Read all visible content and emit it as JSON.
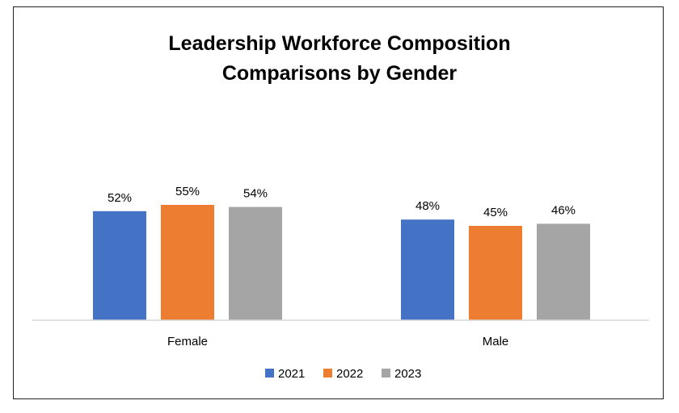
{
  "chart_data": {
    "type": "bar",
    "title_lines": [
      "Leadership Workforce Composition",
      "Comparisons by Gender"
    ],
    "categories": [
      "Female",
      "Male"
    ],
    "series": [
      {
        "name": "2021",
        "color": "#4472C4",
        "values": [
          52,
          48
        ],
        "labels": [
          "52%",
          "48%"
        ]
      },
      {
        "name": "2022",
        "color": "#ED7D31",
        "values": [
          55,
          45
        ],
        "labels": [
          "55%",
          "45%"
        ]
      },
      {
        "name": "2023",
        "color": "#A5A5A5",
        "values": [
          54,
          46
        ],
        "labels": [
          "54%",
          "46%"
        ]
      }
    ],
    "ylim": [
      0,
      100
    ],
    "unit": "%",
    "grid": false,
    "legend_position": "bottom"
  }
}
